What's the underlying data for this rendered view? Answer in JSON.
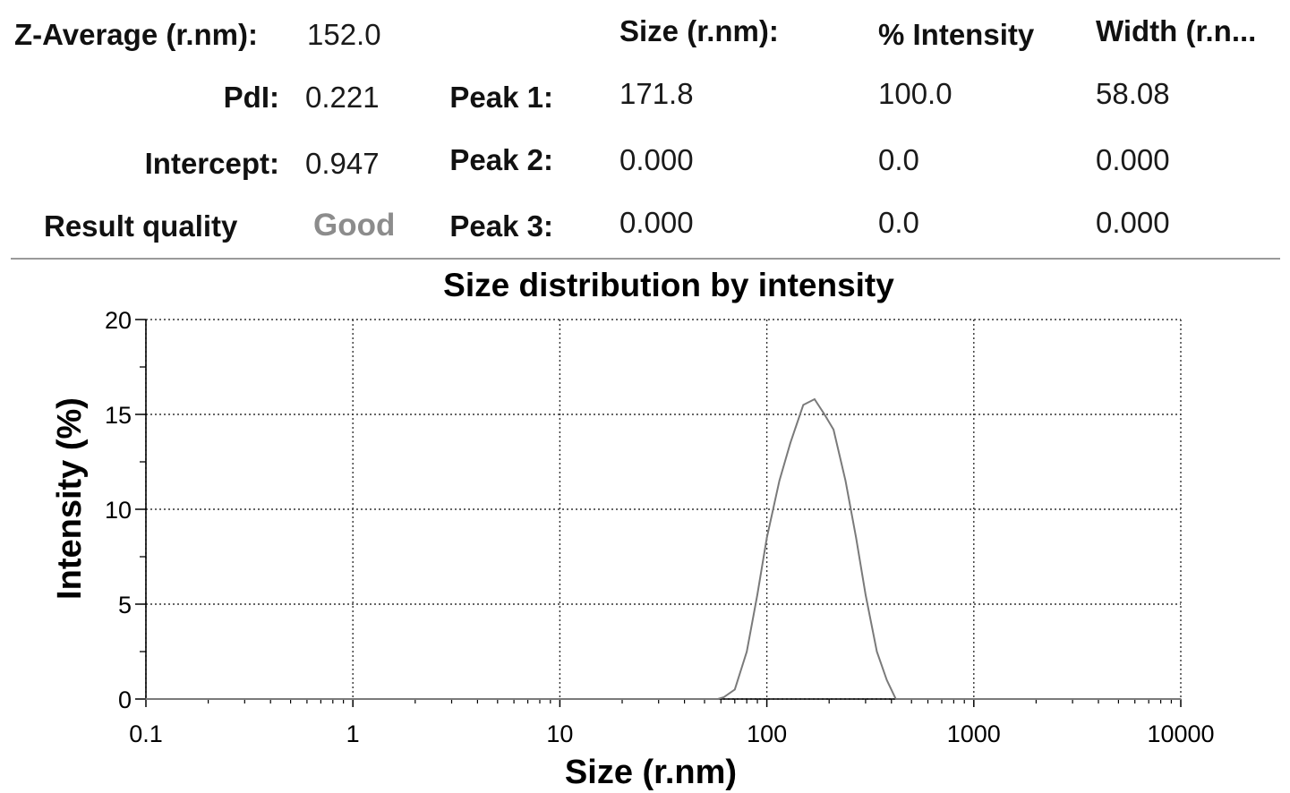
{
  "summary": {
    "z_average_label": "Z-Average (r.nm):",
    "z_average_value": "152.0",
    "pdi_label": "PdI:",
    "pdi_value": "0.221",
    "intercept_label": "Intercept:",
    "intercept_value": "0.947",
    "quality_label": "Result quality",
    "quality_value": "Good"
  },
  "peaks": {
    "headers": {
      "size": "Size (r.nm):",
      "intensity": "% Intensity",
      "width": "Width (r.n..."
    },
    "rows": [
      {
        "label": "Peak 1:",
        "size": "171.8",
        "intensity": "100.0",
        "width": "58.08"
      },
      {
        "label": "Peak 2:",
        "size": "0.000",
        "intensity": "0.0",
        "width": "0.000"
      },
      {
        "label": "Peak 3:",
        "size": "0.000",
        "intensity": "0.0",
        "width": "0.000"
      }
    ]
  },
  "chart_data": {
    "type": "line",
    "title": "Size distribution by intensity",
    "xlabel": "Size (r.nm)",
    "ylabel": "Intensity (%)",
    "x_scale": "log",
    "xlim": [
      0.1,
      10000
    ],
    "ylim": [
      0,
      20
    ],
    "x_ticks": [
      0.1,
      1,
      10,
      100,
      1000,
      10000
    ],
    "x_tick_labels": [
      "0.1",
      "1",
      "10",
      "100",
      "1000",
      "10000"
    ],
    "y_ticks": [
      0,
      5,
      10,
      15,
      20
    ],
    "y_tick_labels": [
      "0",
      "5",
      "10",
      "15",
      "20"
    ],
    "grid": true,
    "line_color": "#7a7a7a",
    "series": [
      {
        "x": [
          0.1,
          58,
          62,
          70,
          80,
          90,
          100,
          115,
          130,
          150,
          170,
          190,
          210,
          240,
          270,
          300,
          340,
          380,
          420,
          10000
        ],
        "values": [
          0,
          0,
          0.1,
          0.5,
          2.5,
          5.5,
          8.5,
          11.5,
          13.5,
          15.5,
          15.8,
          15.0,
          14.2,
          11.5,
          8.5,
          5.5,
          2.5,
          1.0,
          0,
          0
        ]
      }
    ]
  }
}
